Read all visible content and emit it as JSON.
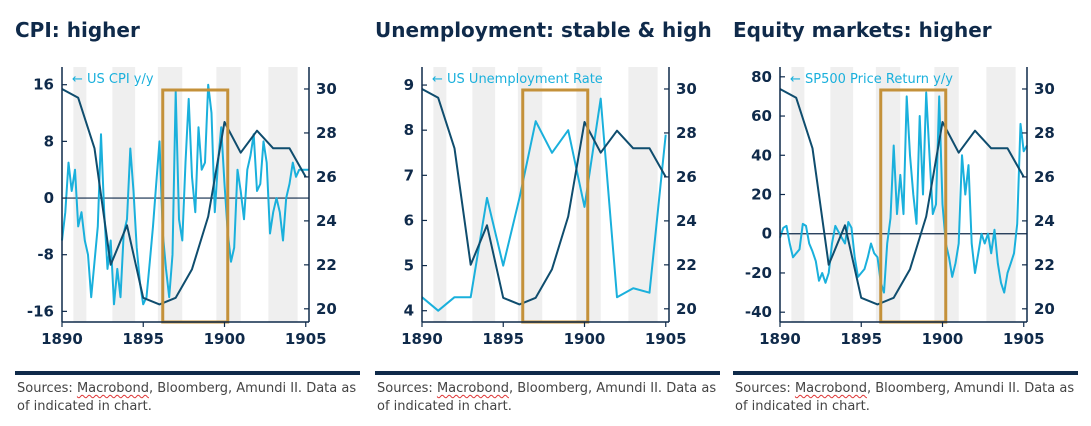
{
  "colors": {
    "light_series": "#1ab0dc",
    "dark_series": "#0f4d6e",
    "axis": "#0f2a4a",
    "highlight_box": "#c4913a",
    "shade_band": "#efefef"
  },
  "source_parts": [
    "Sources: ",
    "Macrobond",
    ", Bloomberg, Amundi II. Data as of indicated in chart."
  ],
  "chart_data": [
    {
      "type": "line",
      "title": "CPI: higher",
      "legend": "← US CPI y/y",
      "legend_position": "top-left",
      "x_ticks": [
        1890,
        1895,
        1900,
        1905
      ],
      "xlim": [
        1890,
        1905.2
      ],
      "left_ticks": [
        16,
        8,
        0,
        -8,
        -16
      ],
      "ylim_left": [
        -17.5,
        18.5
      ],
      "right_ticks": [
        30,
        28,
        26,
        24,
        22,
        20
      ],
      "ylim_right": [
        19.4,
        31
      ],
      "zero_line": 0,
      "shaded_periods": [
        [
          1890.7,
          1891.5
        ],
        [
          1893.1,
          1894.5
        ],
        [
          1895.9,
          1897.4
        ],
        [
          1899.5,
          1901.0
        ],
        [
          1902.7,
          1904.5
        ]
      ],
      "highlight_period": [
        1896.2,
        1900.2
      ],
      "series": [
        {
          "axis": "left",
          "x": [
            1890.0,
            1890.2,
            1890.4,
            1890.6,
            1890.8,
            1891.0,
            1891.2,
            1891.4,
            1891.6,
            1891.8,
            1892.0,
            1892.2,
            1892.4,
            1892.6,
            1892.8,
            1893.0,
            1893.2,
            1893.4,
            1893.6,
            1893.8,
            1894.0,
            1894.2,
            1894.4,
            1894.6,
            1894.8,
            1895.0,
            1895.2,
            1895.4,
            1895.6,
            1895.8,
            1896.0,
            1896.2,
            1896.4,
            1896.6,
            1896.8,
            1897.0,
            1897.2,
            1897.4,
            1897.6,
            1897.8,
            1898.0,
            1898.2,
            1898.4,
            1898.6,
            1898.8,
            1899.0,
            1899.2,
            1899.4,
            1899.6,
            1899.8,
            1900.0,
            1900.2,
            1900.4,
            1900.6,
            1900.8,
            1901.0,
            1901.2,
            1901.4,
            1901.6,
            1901.8,
            1902.0,
            1902.2,
            1902.4,
            1902.6,
            1902.8,
            1903.0,
            1903.2,
            1903.4,
            1903.6,
            1903.8,
            1904.0,
            1904.2,
            1904.4,
            1904.6,
            1904.8,
            1905.0,
            1905.2
          ],
          "values": [
            -6,
            -2,
            5,
            1,
            4,
            -4,
            -2,
            -6,
            -8,
            -14,
            -9,
            -4,
            9,
            -2,
            -10,
            -6,
            -15,
            -10,
            -14,
            -5,
            -3,
            7,
            1,
            -7,
            -12,
            -15,
            -14,
            -9,
            -4,
            2,
            8,
            -5,
            -10,
            -14,
            -8,
            15,
            -3,
            -6,
            5,
            14,
            3,
            -2,
            10,
            4,
            5,
            16,
            12,
            -2,
            5,
            10,
            2,
            -5,
            -9,
            -7,
            4,
            1,
            -3,
            4,
            6,
            9,
            1,
            2,
            8,
            5,
            -5,
            -2,
            0,
            -2,
            -6,
            0,
            2,
            5,
            3,
            4,
            4,
            4,
            4
          ]
        },
        {
          "axis": "right",
          "x": [
            1890,
            1891,
            1892,
            1893,
            1894,
            1895,
            1896,
            1897,
            1898,
            1899,
            1900,
            1901,
            1902,
            1903,
            1904,
            1905
          ],
          "values": [
            30,
            29.6,
            27.3,
            22,
            23.8,
            20.5,
            20.2,
            20.5,
            21.8,
            24.2,
            28.5,
            27.1,
            28.1,
            27.3,
            27.3,
            26
          ]
        }
      ]
    },
    {
      "type": "line",
      "title": "Unemployment: stable & high",
      "legend": "← US Unemployment Rate",
      "legend_position": "top-left",
      "x_ticks": [
        1890,
        1895,
        1900,
        1905
      ],
      "xlim": [
        1890,
        1905.2
      ],
      "left_ticks": [
        9,
        8,
        7,
        6,
        5,
        4
      ],
      "ylim_left": [
        3.75,
        9.4
      ],
      "right_ticks": [
        30,
        28,
        26,
        24,
        22,
        20
      ],
      "ylim_right": [
        19.4,
        31
      ],
      "shaded_periods": [
        [
          1890.7,
          1891.5
        ],
        [
          1893.1,
          1894.5
        ],
        [
          1895.9,
          1897.4
        ],
        [
          1899.5,
          1901.0
        ],
        [
          1902.7,
          1904.5
        ]
      ],
      "highlight_period": [
        1896.2,
        1900.2
      ],
      "series": [
        {
          "axis": "left",
          "x": [
            1890,
            1891,
            1892,
            1893,
            1894,
            1895,
            1896,
            1897,
            1898,
            1899,
            1900,
            1901,
            1902,
            1903,
            1904,
            1905
          ],
          "values": [
            4.3,
            4.0,
            4.3,
            4.3,
            6.5,
            5.0,
            6.5,
            8.2,
            7.5,
            8.0,
            6.3,
            8.7,
            4.3,
            4.5,
            4.4,
            7.9
          ]
        },
        {
          "axis": "right",
          "x": [
            1890,
            1891,
            1892,
            1893,
            1894,
            1895,
            1896,
            1897,
            1898,
            1899,
            1900,
            1901,
            1902,
            1903,
            1904,
            1905
          ],
          "values": [
            30,
            29.6,
            27.3,
            22,
            23.8,
            20.5,
            20.2,
            20.5,
            21.8,
            24.2,
            28.5,
            27.1,
            28.1,
            27.3,
            27.3,
            26
          ]
        }
      ]
    },
    {
      "type": "line",
      "title": "Equity markets: higher",
      "legend": "← SP500 Price Return y/y",
      "legend_position": "top-left",
      "x_ticks": [
        1890,
        1895,
        1900,
        1905
      ],
      "xlim": [
        1890,
        1905.2
      ],
      "left_ticks": [
        80,
        60,
        40,
        20,
        0,
        -20,
        -40
      ],
      "ylim_left": [
        -45,
        85
      ],
      "right_ticks": [
        30,
        28,
        26,
        24,
        22,
        20
      ],
      "ylim_right": [
        19.4,
        31
      ],
      "zero_line": 0,
      "shaded_periods": [
        [
          1890.7,
          1891.5
        ],
        [
          1893.1,
          1894.5
        ],
        [
          1895.9,
          1897.4
        ],
        [
          1899.5,
          1901.0
        ],
        [
          1902.7,
          1904.5
        ]
      ],
      "highlight_period": [
        1896.2,
        1900.2
      ],
      "series": [
        {
          "axis": "left",
          "x": [
            1890.0,
            1890.2,
            1890.4,
            1890.6,
            1890.8,
            1891.0,
            1891.2,
            1891.4,
            1891.6,
            1891.8,
            1892.0,
            1892.2,
            1892.4,
            1892.6,
            1892.8,
            1893.0,
            1893.2,
            1893.4,
            1893.6,
            1893.8,
            1894.0,
            1894.2,
            1894.4,
            1894.6,
            1894.8,
            1895.0,
            1895.2,
            1895.4,
            1895.6,
            1895.8,
            1896.0,
            1896.2,
            1896.4,
            1896.6,
            1896.8,
            1897.0,
            1897.2,
            1897.4,
            1897.6,
            1897.8,
            1898.0,
            1898.2,
            1898.4,
            1898.6,
            1898.8,
            1899.0,
            1899.2,
            1899.4,
            1899.6,
            1899.8,
            1900.0,
            1900.2,
            1900.4,
            1900.6,
            1900.8,
            1901.0,
            1901.2,
            1901.4,
            1901.6,
            1901.8,
            1902.0,
            1902.2,
            1902.4,
            1902.6,
            1902.8,
            1903.0,
            1903.2,
            1903.4,
            1903.6,
            1903.8,
            1904.0,
            1904.2,
            1904.4,
            1904.6,
            1904.8,
            1905.0,
            1905.2
          ],
          "values": [
            -2,
            3,
            4,
            -5,
            -12,
            -10,
            -8,
            5,
            4,
            -5,
            -9,
            -14,
            -24,
            -20,
            -25,
            -20,
            -5,
            4,
            1,
            -2,
            -5,
            6,
            3,
            -12,
            -22,
            -20,
            -18,
            -12,
            -5,
            -10,
            -12,
            -25,
            -30,
            -5,
            8,
            45,
            10,
            30,
            10,
            70,
            40,
            20,
            5,
            60,
            20,
            72,
            40,
            10,
            15,
            70,
            15,
            -5,
            -12,
            -22,
            -15,
            -5,
            40,
            20,
            35,
            -5,
            -20,
            -10,
            0,
            -5,
            0,
            -10,
            2,
            -15,
            -25,
            -30,
            -20,
            -15,
            -10,
            5,
            56,
            42,
            45
          ]
        },
        {
          "axis": "right",
          "x": [
            1890,
            1891,
            1892,
            1893,
            1894,
            1895,
            1896,
            1897,
            1898,
            1899,
            1900,
            1901,
            1902,
            1903,
            1904,
            1905
          ],
          "values": [
            30,
            29.6,
            27.3,
            22,
            23.8,
            20.5,
            20.2,
            20.5,
            21.8,
            24.2,
            28.5,
            27.1,
            28.1,
            27.3,
            27.3,
            26
          ]
        }
      ]
    }
  ]
}
